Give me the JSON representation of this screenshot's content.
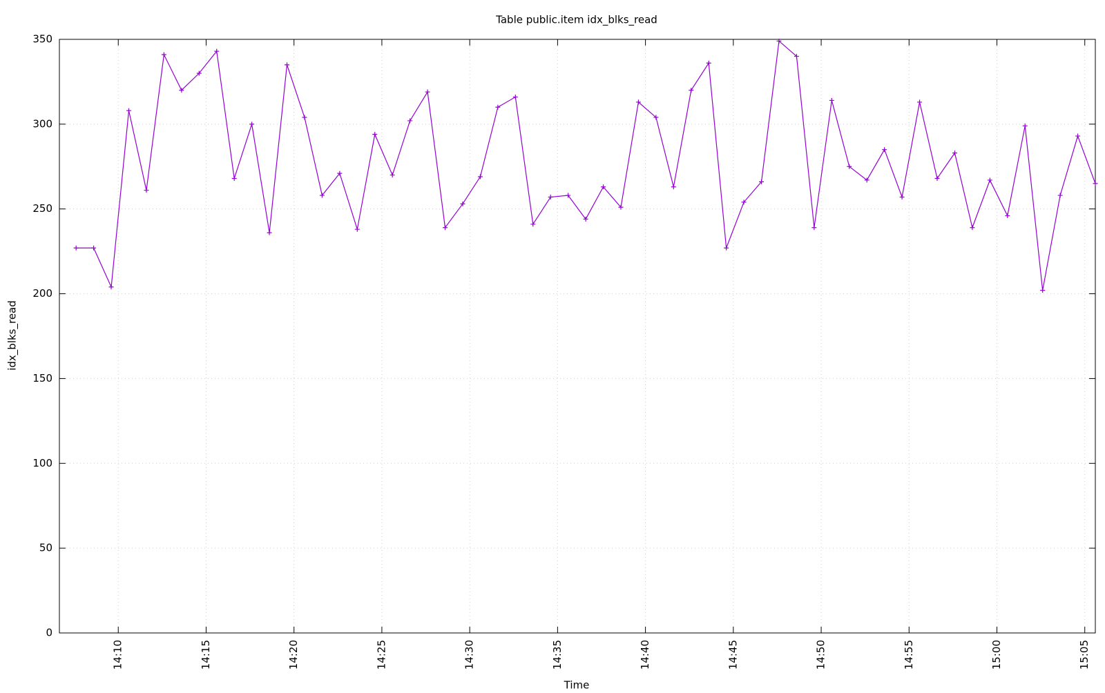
{
  "chart_data": {
    "type": "line",
    "title": "Table public.item idx_blks_read",
    "x_label": "Time",
    "y_label": "idx_blks_read",
    "x": [
      847.6,
      848.6,
      849.6,
      850.6,
      851.6,
      852.6,
      853.6,
      854.6,
      855.6,
      856.6,
      857.6,
      858.6,
      859.6,
      860.6,
      861.6,
      862.6,
      863.6,
      864.6,
      865.6,
      866.6,
      867.6,
      868.6,
      869.6,
      870.6,
      871.6,
      872.6,
      873.6,
      874.6,
      875.6,
      876.6,
      877.6,
      878.6,
      879.6,
      880.6,
      881.6,
      882.6,
      883.6,
      884.6,
      885.6,
      886.6,
      887.6,
      888.6,
      889.6,
      890.6,
      891.6,
      892.6,
      893.6,
      894.6,
      895.6,
      896.6,
      897.6,
      898.6,
      899.6,
      900.6,
      901.6,
      902.6,
      903.6,
      904.6,
      905.6
    ],
    "series": [
      {
        "name": "idx_blks_read",
        "color": "#9400d3",
        "values": [
          227,
          227,
          204,
          308,
          261,
          341,
          320,
          330,
          343,
          268,
          300,
          236,
          335,
          304,
          258,
          271,
          238,
          294,
          270,
          302,
          319,
          239,
          253,
          269,
          310,
          316,
          241,
          257,
          258,
          244,
          263,
          251,
          313,
          304,
          263,
          320,
          336,
          227,
          254,
          266,
          349,
          340,
          239,
          314,
          275,
          267,
          285,
          257,
          313,
          268,
          283,
          239,
          267,
          246,
          299,
          202,
          258,
          293,
          265
        ]
      }
    ],
    "xlim": [
      846.65,
      905.6
    ],
    "xticks": [
      {
        "value": 850,
        "label": "14:10"
      },
      {
        "value": 855,
        "label": "14:15"
      },
      {
        "value": 860,
        "label": "14:20"
      },
      {
        "value": 865,
        "label": "14:25"
      },
      {
        "value": 870,
        "label": "14:30"
      },
      {
        "value": 875,
        "label": "14:35"
      },
      {
        "value": 880,
        "label": "14:40"
      },
      {
        "value": 885,
        "label": "14:45"
      },
      {
        "value": 890,
        "label": "14:50"
      },
      {
        "value": 895,
        "label": "14:55"
      },
      {
        "value": 900,
        "label": "15:00"
      },
      {
        "value": 905,
        "label": "15:05"
      }
    ],
    "ylim": [
      0,
      350
    ],
    "yticks": [
      0,
      50,
      100,
      150,
      200,
      250,
      300,
      350
    ],
    "grid": true
  }
}
